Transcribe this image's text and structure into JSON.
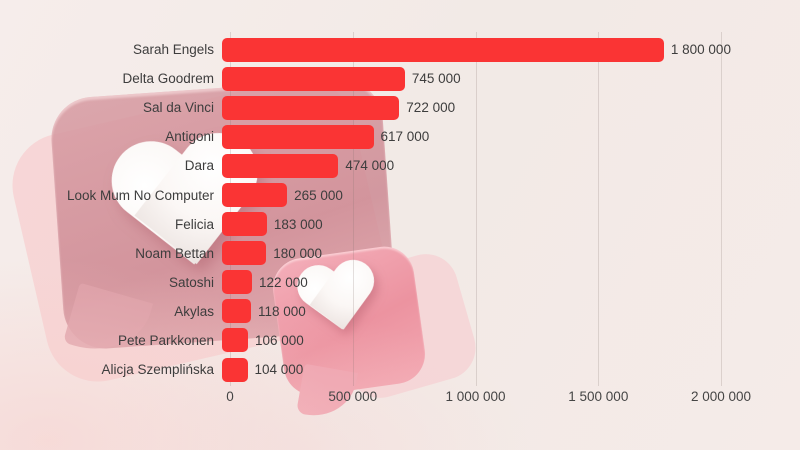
{
  "chart_data": {
    "type": "bar",
    "orientation": "horizontal",
    "title": "",
    "xlabel": "",
    "ylabel": "",
    "categories": [
      "Sarah Engels",
      "Delta Goodrem",
      "Sal da Vinci",
      "Antigoni",
      "Dara",
      "Look Mum No Computer",
      "Felicia",
      "Noam Bettan",
      "Satoshi",
      "Akylas",
      "Pete Parkkonen",
      "Alicja Szemplińska"
    ],
    "values": [
      1800000,
      745000,
      722000,
      617000,
      474000,
      265000,
      183000,
      180000,
      122000,
      118000,
      106000,
      104000
    ],
    "value_labels": [
      "1 800 000",
      "745 000",
      "722 000",
      "617 000",
      "474 000",
      "265 000",
      "183 000",
      "180 000",
      "122 000",
      "118 000",
      "106 000",
      "104 000"
    ],
    "x_ticks": {
      "values": [
        0,
        500000,
        1000000,
        1500000,
        2000000
      ],
      "labels": [
        "0",
        "500 000",
        "1 000 000",
        "1 500 000",
        "2 000 000"
      ]
    },
    "xlim": [
      0,
      2000000
    ],
    "grid": true,
    "legend": false,
    "bar_color": "#fa3434",
    "text_color": "#3d3d3d"
  },
  "decor": {
    "large_bubble_icon": "like-notification-bubble",
    "large_heart_icon": "heart",
    "small_bubble_icon": "like-notification-bubble",
    "small_heart_icon": "heart",
    "bubble_pink": "#d4a3a8",
    "small_bubble_pink": "#ee97a3",
    "heart_white": "#fbf8f7",
    "background_tint": "#f3ebe8"
  }
}
